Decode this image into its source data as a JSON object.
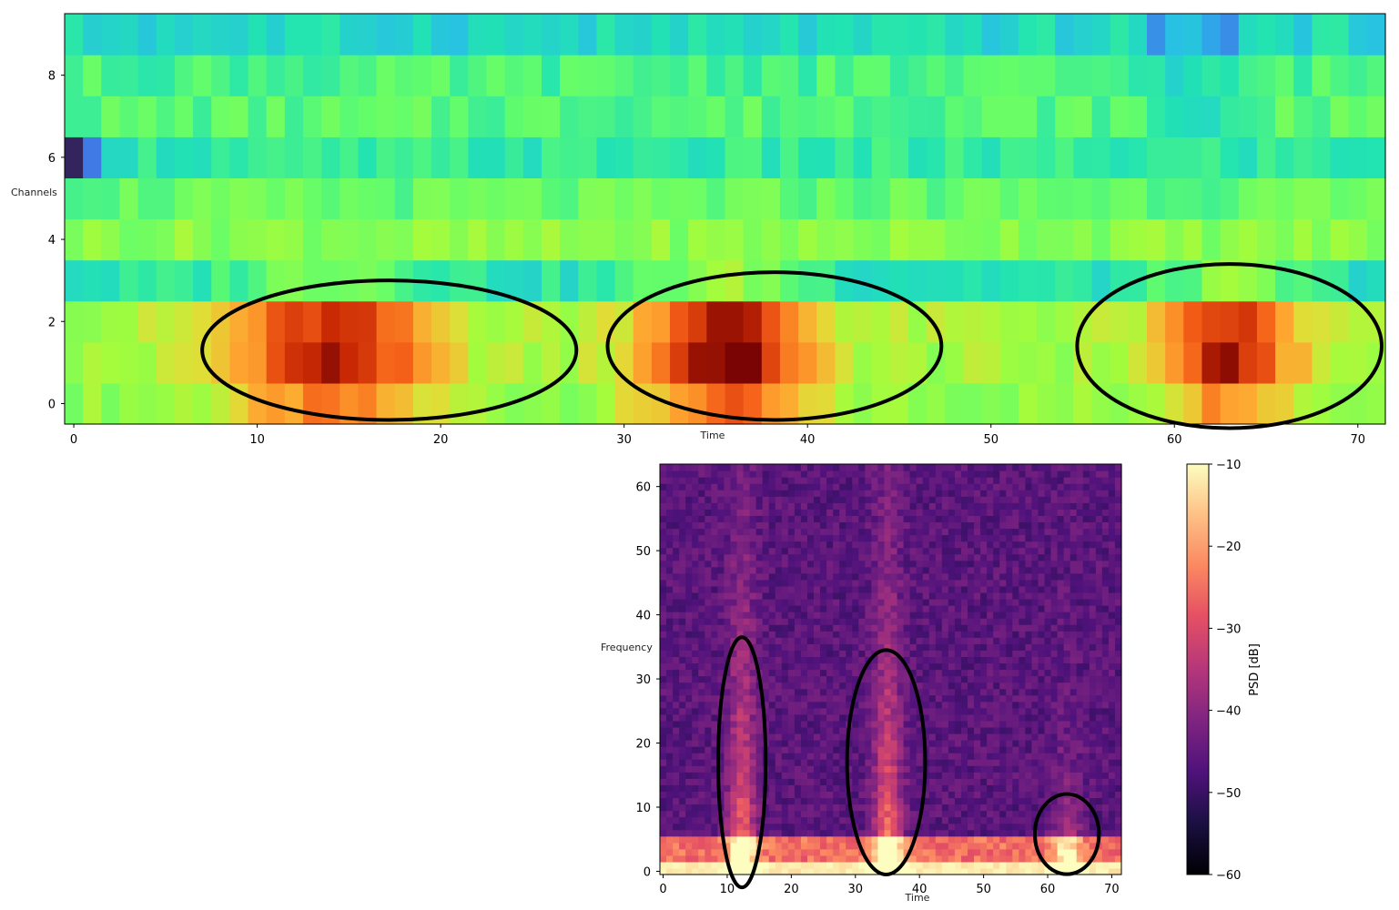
{
  "chart_data": [
    {
      "type": "heatmap",
      "colormap": "turbo",
      "xlabel": "Time",
      "ylabel": "Channels",
      "xlim": [
        -0.5,
        71.5
      ],
      "ylim": [
        -0.5,
        9.5
      ],
      "xticks": [
        0,
        10,
        20,
        30,
        40,
        50,
        60,
        70
      ],
      "yticks": [
        0,
        2,
        4,
        6,
        8
      ],
      "n_time": 72,
      "n_channels": 10,
      "annotations": [
        {
          "shape": "ellipse",
          "center": [
            17.2,
            1.3
          ],
          "width": 20.4,
          "height": 3.4
        },
        {
          "shape": "ellipse",
          "center": [
            38.2,
            1.4
          ],
          "width": 18.2,
          "height": 3.6
        },
        {
          "shape": "ellipse",
          "center": [
            63.0,
            1.4
          ],
          "width": 16.6,
          "height": 4.0
        }
      ]
    },
    {
      "type": "heatmap",
      "colormap": "magma",
      "xlabel": "Time",
      "ylabel": "Frequency",
      "xlim": [
        -0.5,
        71.5
      ],
      "ylim": [
        -0.5,
        63.5
      ],
      "xticks": [
        0,
        10,
        20,
        30,
        40,
        50,
        60,
        70
      ],
      "yticks": [
        0,
        10,
        20,
        30,
        40,
        50,
        60
      ],
      "colorbar": {
        "label": "PSD [dB]",
        "range": [
          -60,
          -10
        ],
        "ticks": [
          "−10",
          "−20",
          "−30",
          "−40",
          "−50",
          "−60"
        ]
      },
      "annotations": [
        {
          "shape": "ellipse",
          "center": [
            12.3,
            17.0
          ],
          "width": 7.4,
          "height": 39.0
        },
        {
          "shape": "ellipse",
          "center": [
            34.8,
            17.0
          ],
          "width": 12.2,
          "height": 35.0
        },
        {
          "shape": "ellipse",
          "center": [
            63.0,
            5.8
          ],
          "width": 10.0,
          "height": 12.5
        }
      ]
    }
  ]
}
